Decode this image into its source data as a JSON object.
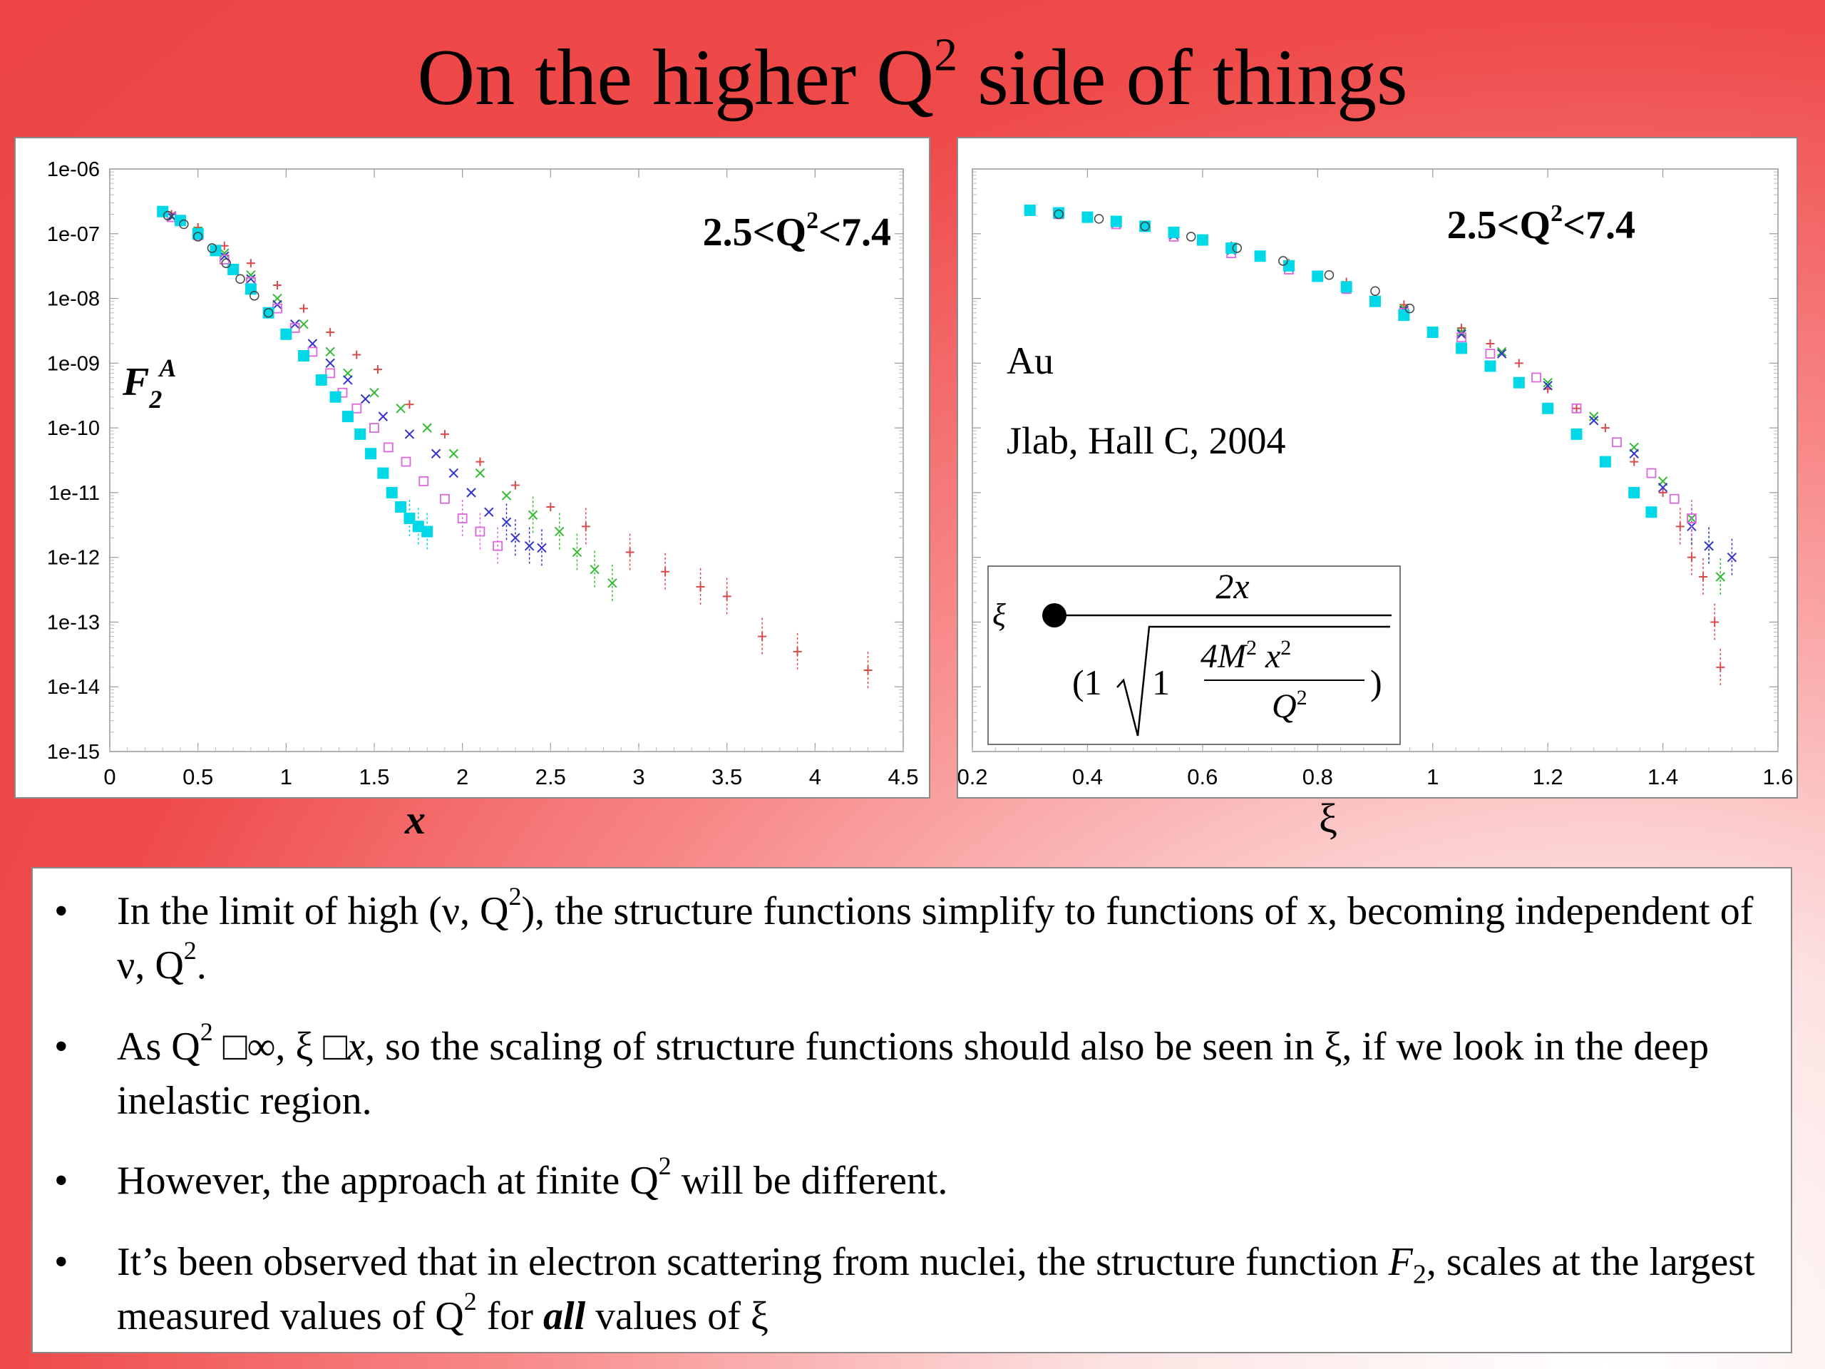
{
  "title": {
    "text": "On the higher Q",
    "sup": "2",
    "tail": " side of things"
  },
  "bullets": [
    {
      "t1": "In the limit of high (ν, Q",
      "s1": "2",
      "t2": "), the structure functions simplify to functions of x, becoming independent of ν, Q",
      "s2": "2",
      "t3": "."
    },
    {
      "t1": "As Q",
      "s1": "2",
      "t2": " □∞, ξ □",
      "v": "x",
      "t3": ", so the scaling of structure functions should also be seen in ξ, if we look in the deep inelastic region."
    },
    {
      "t1": "However, the approach at finite Q",
      "s1": "2",
      "t2": " will be different."
    },
    {
      "t1": "It’s been observed that in electron scattering from nuclei, the structure function ",
      "f": "F",
      "fs": "2",
      "t2": ", scales at the largest measured values of Q",
      "s1": "2",
      "t3": " for ",
      "b": "all",
      "t4": " values of ξ"
    }
  ],
  "chart_data": [
    {
      "type": "scatter",
      "log_y": true,
      "xlim": [
        0,
        4.5
      ],
      "ylim": [
        1e-15,
        1e-06
      ],
      "x_ticks": [
        "0",
        "0.5",
        "1",
        "1.5",
        "2",
        "2.5",
        "3",
        "3.5",
        "4",
        "4.5"
      ],
      "y_ticks": [
        "1e-15",
        "1e-14",
        "1e-13",
        "1e-12",
        "1e-11",
        "1e-10",
        "1e-09",
        "1e-08",
        "1e-07",
        "1e-06"
      ],
      "xlabel": "x",
      "ylabel": "F",
      "ylabel_sub": "2",
      "ylabel_sup": "A",
      "annotation": {
        "pre": "2.5<Q",
        "sup": "2",
        "post": "<7.4"
      },
      "series": [
        {
          "color": "#d94a4a",
          "marker": "plus",
          "points": [
            [
              0.35,
              2e-07
            ],
            [
              0.5,
              1.25e-07
            ],
            [
              0.65,
              6.5e-08
            ],
            [
              0.8,
              3.5e-08
            ],
            [
              0.95,
              1.6e-08
            ],
            [
              1.1,
              7e-09
            ],
            [
              1.25,
              3e-09
            ],
            [
              1.4,
              1.35e-09
            ],
            [
              1.52,
              8e-10
            ],
            [
              1.7,
              2.3e-10
            ],
            [
              1.9,
              8e-11
            ],
            [
              2.1,
              3e-11
            ],
            [
              2.3,
              1.3e-11
            ],
            [
              2.5,
              6e-12
            ],
            [
              2.7,
              3e-12
            ],
            [
              2.95,
              1.2e-12
            ],
            [
              3.15,
              6e-13
            ],
            [
              3.35,
              3.5e-13
            ],
            [
              3.5,
              2.5e-13
            ],
            [
              3.7,
              6e-14
            ],
            [
              3.9,
              3.5e-14
            ],
            [
              4.3,
              1.8e-14
            ]
          ]
        },
        {
          "color": "#33bb33",
          "marker": "x",
          "points": [
            [
              0.35,
              1.9e-07
            ],
            [
              0.5,
              1.1e-07
            ],
            [
              0.65,
              5e-08
            ],
            [
              0.8,
              2.3e-08
            ],
            [
              0.95,
              1e-08
            ],
            [
              1.1,
              4e-09
            ],
            [
              1.25,
              1.5e-09
            ],
            [
              1.35,
              7e-10
            ],
            [
              1.5,
              3.5e-10
            ],
            [
              1.65,
              2e-10
            ],
            [
              1.8,
              1e-10
            ],
            [
              1.95,
              4e-11
            ],
            [
              2.1,
              2e-11
            ],
            [
              2.25,
              9e-12
            ],
            [
              2.4,
              4.5e-12
            ],
            [
              2.55,
              2.5e-12
            ],
            [
              2.65,
              1.2e-12
            ],
            [
              2.75,
              6.5e-13
            ],
            [
              2.85,
              4e-13
            ]
          ]
        },
        {
          "color": "#3333cc",
          "marker": "x",
          "points": [
            [
              0.35,
              1.85e-07
            ],
            [
              0.5,
              1e-07
            ],
            [
              0.65,
              4.5e-08
            ],
            [
              0.8,
              2e-08
            ],
            [
              0.95,
              8e-09
            ],
            [
              1.05,
              4e-09
            ],
            [
              1.15,
              2e-09
            ],
            [
              1.25,
              1e-09
            ],
            [
              1.35,
              5.5e-10
            ],
            [
              1.45,
              2.8e-10
            ],
            [
              1.55,
              1.5e-10
            ],
            [
              1.7,
              8e-11
            ],
            [
              1.85,
              4e-11
            ],
            [
              1.95,
              2e-11
            ],
            [
              2.05,
              1e-11
            ],
            [
              2.15,
              5e-12
            ],
            [
              2.25,
              3.5e-12
            ],
            [
              2.3,
              2e-12
            ],
            [
              2.38,
              1.5e-12
            ],
            [
              2.45,
              1.4e-12
            ]
          ]
        },
        {
          "color": "#dd66dd",
          "marker": "square",
          "points": [
            [
              0.35,
              1.8e-07
            ],
            [
              0.5,
              9.5e-08
            ],
            [
              0.65,
              4e-08
            ],
            [
              0.8,
              1.8e-08
            ],
            [
              0.95,
              7e-09
            ],
            [
              1.05,
              3.5e-09
            ],
            [
              1.15,
              1.5e-09
            ],
            [
              1.25,
              7e-10
            ],
            [
              1.32,
              3.5e-10
            ],
            [
              1.4,
              2e-10
            ],
            [
              1.5,
              1e-10
            ],
            [
              1.58,
              5e-11
            ],
            [
              1.68,
              3e-11
            ],
            [
              1.78,
              1.5e-11
            ],
            [
              1.9,
              8e-12
            ],
            [
              2.0,
              4e-12
            ],
            [
              2.1,
              2.5e-12
            ],
            [
              2.2,
              1.5e-12
            ]
          ]
        },
        {
          "color": "#00d8e8",
          "marker": "fsquare",
          "points": [
            [
              0.3,
              2.2e-07
            ],
            [
              0.4,
              1.6e-07
            ],
            [
              0.5,
              1e-07
            ],
            [
              0.6,
              5.5e-08
            ],
            [
              0.7,
              2.8e-08
            ],
            [
              0.8,
              1.4e-08
            ],
            [
              0.9,
              6e-09
            ],
            [
              1.0,
              2.8e-09
            ],
            [
              1.1,
              1.3e-09
            ],
            [
              1.2,
              5.5e-10
            ],
            [
              1.28,
              3e-10
            ],
            [
              1.35,
              1.5e-10
            ],
            [
              1.42,
              8e-11
            ],
            [
              1.48,
              4e-11
            ],
            [
              1.55,
              2e-11
            ],
            [
              1.6,
              1e-11
            ],
            [
              1.65,
              6e-12
            ],
            [
              1.7,
              4e-12
            ],
            [
              1.75,
              3e-12
            ],
            [
              1.8,
              2.5e-12
            ]
          ]
        },
        {
          "color": "#444444",
          "marker": "circle",
          "points": [
            [
              0.33,
              1.9e-07
            ],
            [
              0.42,
              1.4e-07
            ],
            [
              0.5,
              9e-08
            ],
            [
              0.58,
              6e-08
            ],
            [
              0.66,
              3.5e-08
            ],
            [
              0.74,
              2e-08
            ],
            [
              0.82,
              1.1e-08
            ],
            [
              0.9,
              6e-09
            ]
          ]
        }
      ]
    },
    {
      "type": "scatter",
      "log_y": true,
      "xlim": [
        0.2,
        1.6
      ],
      "ylim": [
        1e-15,
        1e-06
      ],
      "x_ticks": [
        "0.2",
        "0.4",
        "0.6",
        "0.8",
        "1",
        "1.2",
        "1.4",
        "1.6"
      ],
      "xlabel": "ξ",
      "annotation": {
        "pre": "2.5<Q",
        "sup": "2",
        "post": "<7.4"
      },
      "label_target": "Au",
      "label_source": "Jlab, Hall C, 2004",
      "formula": {
        "lhs": "ξ",
        "num": "2x",
        "den_pre": "(1",
        "den_in": "1",
        "den_frac_num": "4M",
        "den_frac_sup1": "2",
        "den_frac_x": "x",
        "den_frac_sup2": "2",
        "den_frac_den": "Q",
        "den_frac_den_sup": "2",
        "den_post": ")"
      },
      "series": [
        {
          "color": "#d94a4a",
          "marker": "plus",
          "points": [
            [
              0.35,
              2.2e-07
            ],
            [
              0.45,
              1.6e-07
            ],
            [
              0.55,
              1.1e-07
            ],
            [
              0.65,
              6.5e-08
            ],
            [
              0.75,
              3.5e-08
            ],
            [
              0.85,
              1.8e-08
            ],
            [
              0.95,
              8e-09
            ],
            [
              1.05,
              3.5e-09
            ],
            [
              1.1,
              2e-09
            ],
            [
              1.15,
              1e-09
            ],
            [
              1.2,
              4e-10
            ],
            [
              1.25,
              2e-10
            ],
            [
              1.3,
              1e-10
            ],
            [
              1.35,
              3e-11
            ],
            [
              1.4,
              1e-11
            ],
            [
              1.43,
              3e-12
            ],
            [
              1.45,
              1e-12
            ],
            [
              1.47,
              5e-13
            ],
            [
              1.49,
              1e-13
            ],
            [
              1.5,
              2e-14
            ]
          ]
        },
        {
          "color": "#33bb33",
          "marker": "x",
          "points": [
            [
              0.35,
              2.1e-07
            ],
            [
              0.45,
              1.5e-07
            ],
            [
              0.55,
              1e-07
            ],
            [
              0.65,
              6e-08
            ],
            [
              0.75,
              3.2e-08
            ],
            [
              0.85,
              1.6e-08
            ],
            [
              0.95,
              7e-09
            ],
            [
              1.05,
              3e-09
            ],
            [
              1.12,
              1.5e-09
            ],
            [
              1.2,
              5e-10
            ],
            [
              1.28,
              1.5e-10
            ],
            [
              1.35,
              5e-11
            ],
            [
              1.4,
              1.5e-11
            ],
            [
              1.45,
              4e-12
            ],
            [
              1.48,
              1.5e-12
            ],
            [
              1.5,
              5e-13
            ]
          ]
        },
        {
          "color": "#3333cc",
          "marker": "x",
          "points": [
            [
              0.35,
              2e-07
            ],
            [
              0.45,
              1.45e-07
            ],
            [
              0.55,
              9.5e-08
            ],
            [
              0.65,
              5.5e-08
            ],
            [
              0.75,
              3e-08
            ],
            [
              0.85,
              1.5e-08
            ],
            [
              0.95,
              6.5e-09
            ],
            [
              1.05,
              2.8e-09
            ],
            [
              1.12,
              1.4e-09
            ],
            [
              1.2,
              4.5e-10
            ],
            [
              1.28,
              1.3e-10
            ],
            [
              1.35,
              4e-11
            ],
            [
              1.4,
              1.2e-11
            ],
            [
              1.45,
              3e-12
            ],
            [
              1.48,
              1.5e-12
            ],
            [
              1.52,
              1e-12
            ]
          ]
        },
        {
          "color": "#dd66dd",
          "marker": "square",
          "points": [
            [
              0.35,
              2e-07
            ],
            [
              0.45,
              1.4e-07
            ],
            [
              0.55,
              9e-08
            ],
            [
              0.65,
              5e-08
            ],
            [
              0.75,
              2.8e-08
            ],
            [
              0.85,
              1.4e-08
            ],
            [
              0.95,
              6e-09
            ],
            [
              1.05,
              2.5e-09
            ],
            [
              1.1,
              1.4e-09
            ],
            [
              1.18,
              6e-10
            ],
            [
              1.25,
              2e-10
            ],
            [
              1.32,
              6e-11
            ],
            [
              1.38,
              2e-11
            ],
            [
              1.42,
              8e-12
            ],
            [
              1.45,
              4e-12
            ]
          ]
        },
        {
          "color": "#00d8e8",
          "marker": "fsquare",
          "points": [
            [
              0.3,
              2.3e-07
            ],
            [
              0.35,
              2.1e-07
            ],
            [
              0.4,
              1.8e-07
            ],
            [
              0.45,
              1.55e-07
            ],
            [
              0.5,
              1.3e-07
            ],
            [
              0.55,
              1.05e-07
            ],
            [
              0.6,
              8e-08
            ],
            [
              0.65,
              6e-08
            ],
            [
              0.7,
              4.5e-08
            ],
            [
              0.75,
              3.2e-08
            ],
            [
              0.8,
              2.2e-08
            ],
            [
              0.85,
              1.5e-08
            ],
            [
              0.9,
              9e-09
            ],
            [
              0.95,
              5.5e-09
            ],
            [
              1.0,
              3e-09
            ],
            [
              1.05,
              1.7e-09
            ],
            [
              1.1,
              9e-10
            ],
            [
              1.15,
              5e-10
            ],
            [
              1.2,
              2e-10
            ],
            [
              1.25,
              8e-11
            ],
            [
              1.3,
              3e-11
            ],
            [
              1.35,
              1e-11
            ],
            [
              1.38,
              5e-12
            ]
          ]
        },
        {
          "color": "#444444",
          "marker": "circle",
          "points": [
            [
              0.35,
              2e-07
            ],
            [
              0.42,
              1.7e-07
            ],
            [
              0.5,
              1.3e-07
            ],
            [
              0.58,
              9e-08
            ],
            [
              0.66,
              6e-08
            ],
            [
              0.74,
              3.8e-08
            ],
            [
              0.82,
              2.3e-08
            ],
            [
              0.9,
              1.3e-08
            ],
            [
              0.96,
              7e-09
            ]
          ]
        }
      ]
    }
  ]
}
